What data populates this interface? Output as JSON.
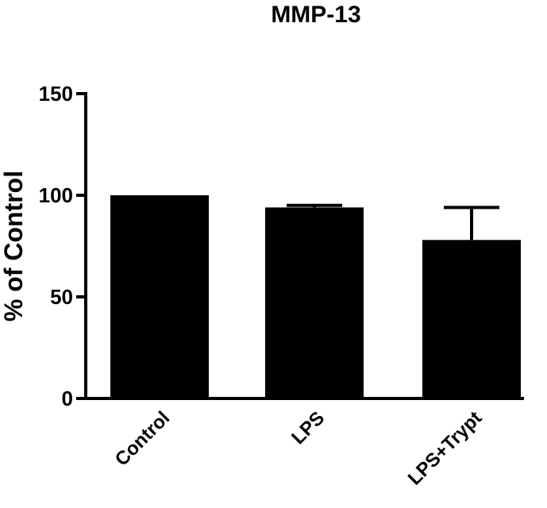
{
  "chart_data": {
    "type": "bar",
    "title": "MMP-13",
    "xlabel": "",
    "ylabel": "% of Control",
    "categories": [
      "Control",
      "LPS",
      "LPS+Trypt"
    ],
    "values": [
      100,
      94,
      78
    ],
    "error_upper": [
      0,
      1,
      16
    ],
    "ylim": [
      0,
      150
    ],
    "yticks": [
      0,
      50,
      100,
      150
    ],
    "ytick_labels": [
      "0",
      "50",
      "100",
      "150"
    ],
    "bar_color": "#000000",
    "grid": false,
    "legend": "none"
  }
}
